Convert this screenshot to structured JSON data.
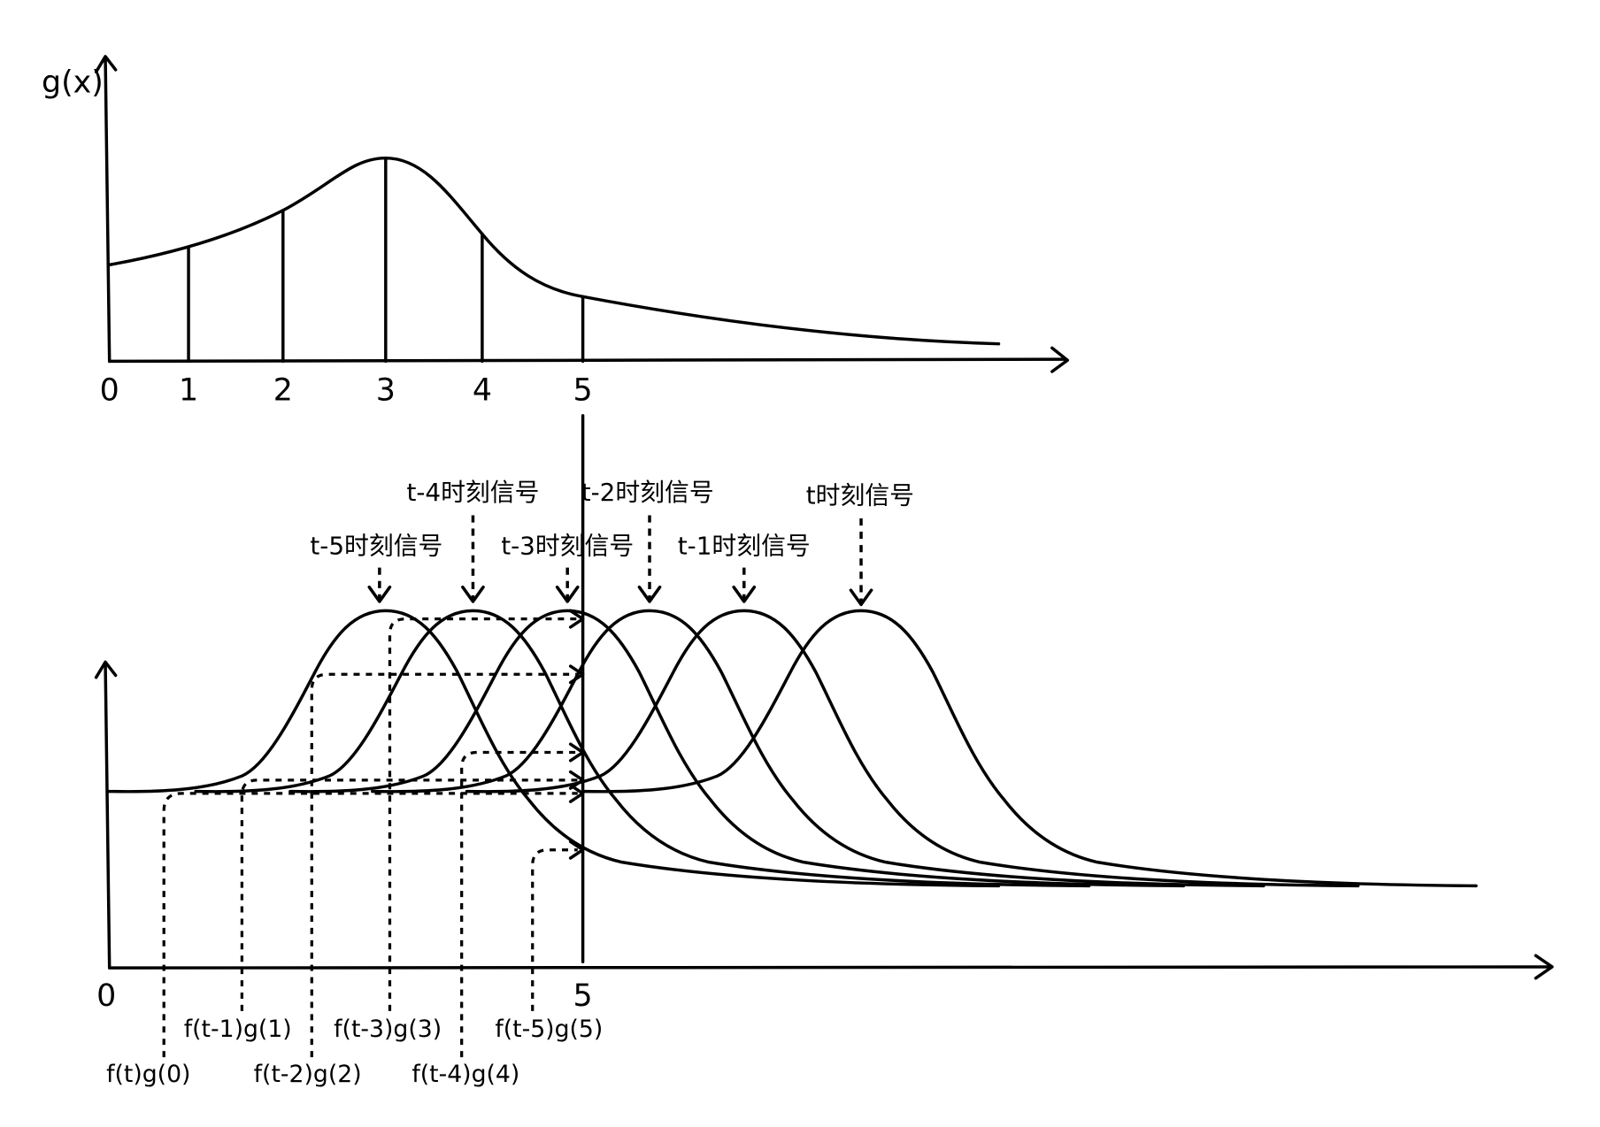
{
  "top_plot": {
    "y_label": "g(x)",
    "x_ticks": [
      "0",
      "1",
      "2",
      "3",
      "4",
      "5"
    ]
  },
  "bottom_plot": {
    "x_ticks": [
      "0",
      "5"
    ],
    "signals": [
      "t-5时刻信号",
      "t-4时刻信号",
      "t-3时刻信号",
      "t-2时刻信号",
      "t-1时刻信号",
      "t时刻信号"
    ],
    "products": [
      "f(t)g(0)",
      "f(t-1)g(1)",
      "f(t-2)g(2)",
      "f(t-3)g(3)",
      "f(t-4)g(4)",
      "f(t-5)g(5)"
    ]
  },
  "colors": {
    "ink": "#000000",
    "background": "#ffffff"
  }
}
